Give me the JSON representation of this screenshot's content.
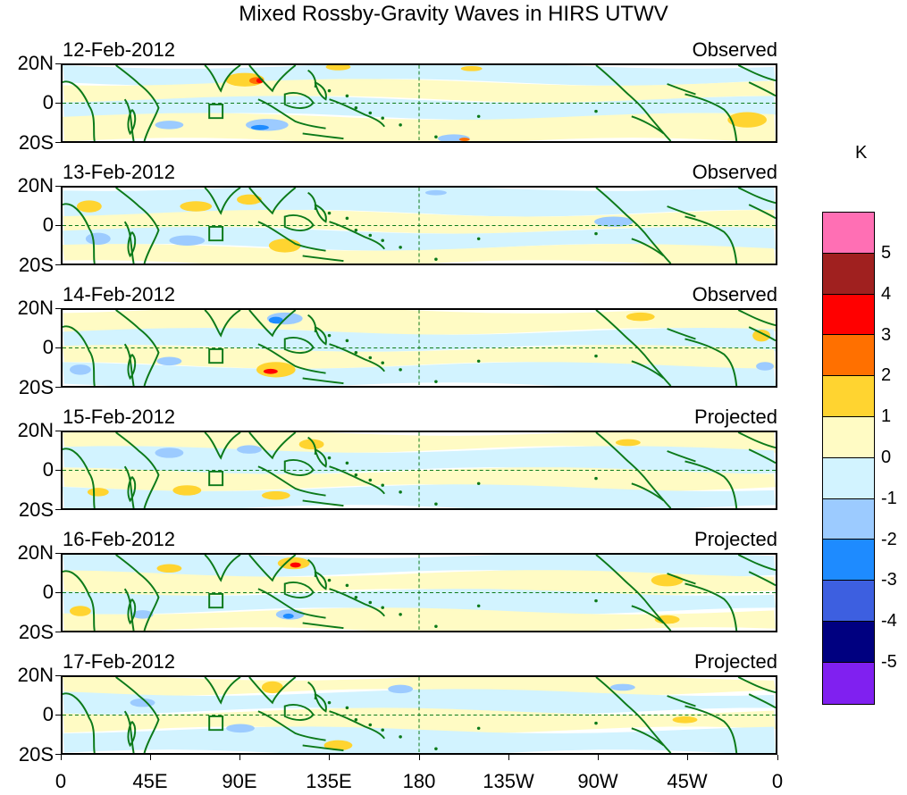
{
  "title": "Mixed Rossby-Gravity Waves in HIRS UTWV",
  "panels": [
    {
      "date": "12-Feb-2012",
      "label": "Observed"
    },
    {
      "date": "13-Feb-2012",
      "label": "Observed"
    },
    {
      "date": "14-Feb-2012",
      "label": "Observed"
    },
    {
      "date": "15-Feb-2012",
      "label": "Projected"
    },
    {
      "date": "16-Feb-2012",
      "label": "Projected"
    },
    {
      "date": "17-Feb-2012",
      "label": "Projected"
    }
  ],
  "lat_labels": [
    "20N",
    "0",
    "20S"
  ],
  "lon_labels": [
    "0",
    "45E",
    "90E",
    "135E",
    "180",
    "135W",
    "90W",
    "45W",
    "0"
  ],
  "colorbar": {
    "unit": "K",
    "labels": [
      "5",
      "4",
      "3",
      "2",
      "1",
      "0",
      "-1",
      "-2",
      "-3",
      "-4",
      "-5"
    ],
    "colors": [
      "#ff6fb4",
      "#a0201f",
      "#ff0000",
      "#ff7000",
      "#ffd430",
      "#fffbc4",
      "#d2f3ff",
      "#9ccbff",
      "#1e8bff",
      "#3d5fe0",
      "#000080",
      "#8020f0"
    ]
  },
  "colors": {
    "coast": "#0c7a1a",
    "positive_light": "#fffbc4",
    "negative_light": "#d2f3ff"
  }
}
